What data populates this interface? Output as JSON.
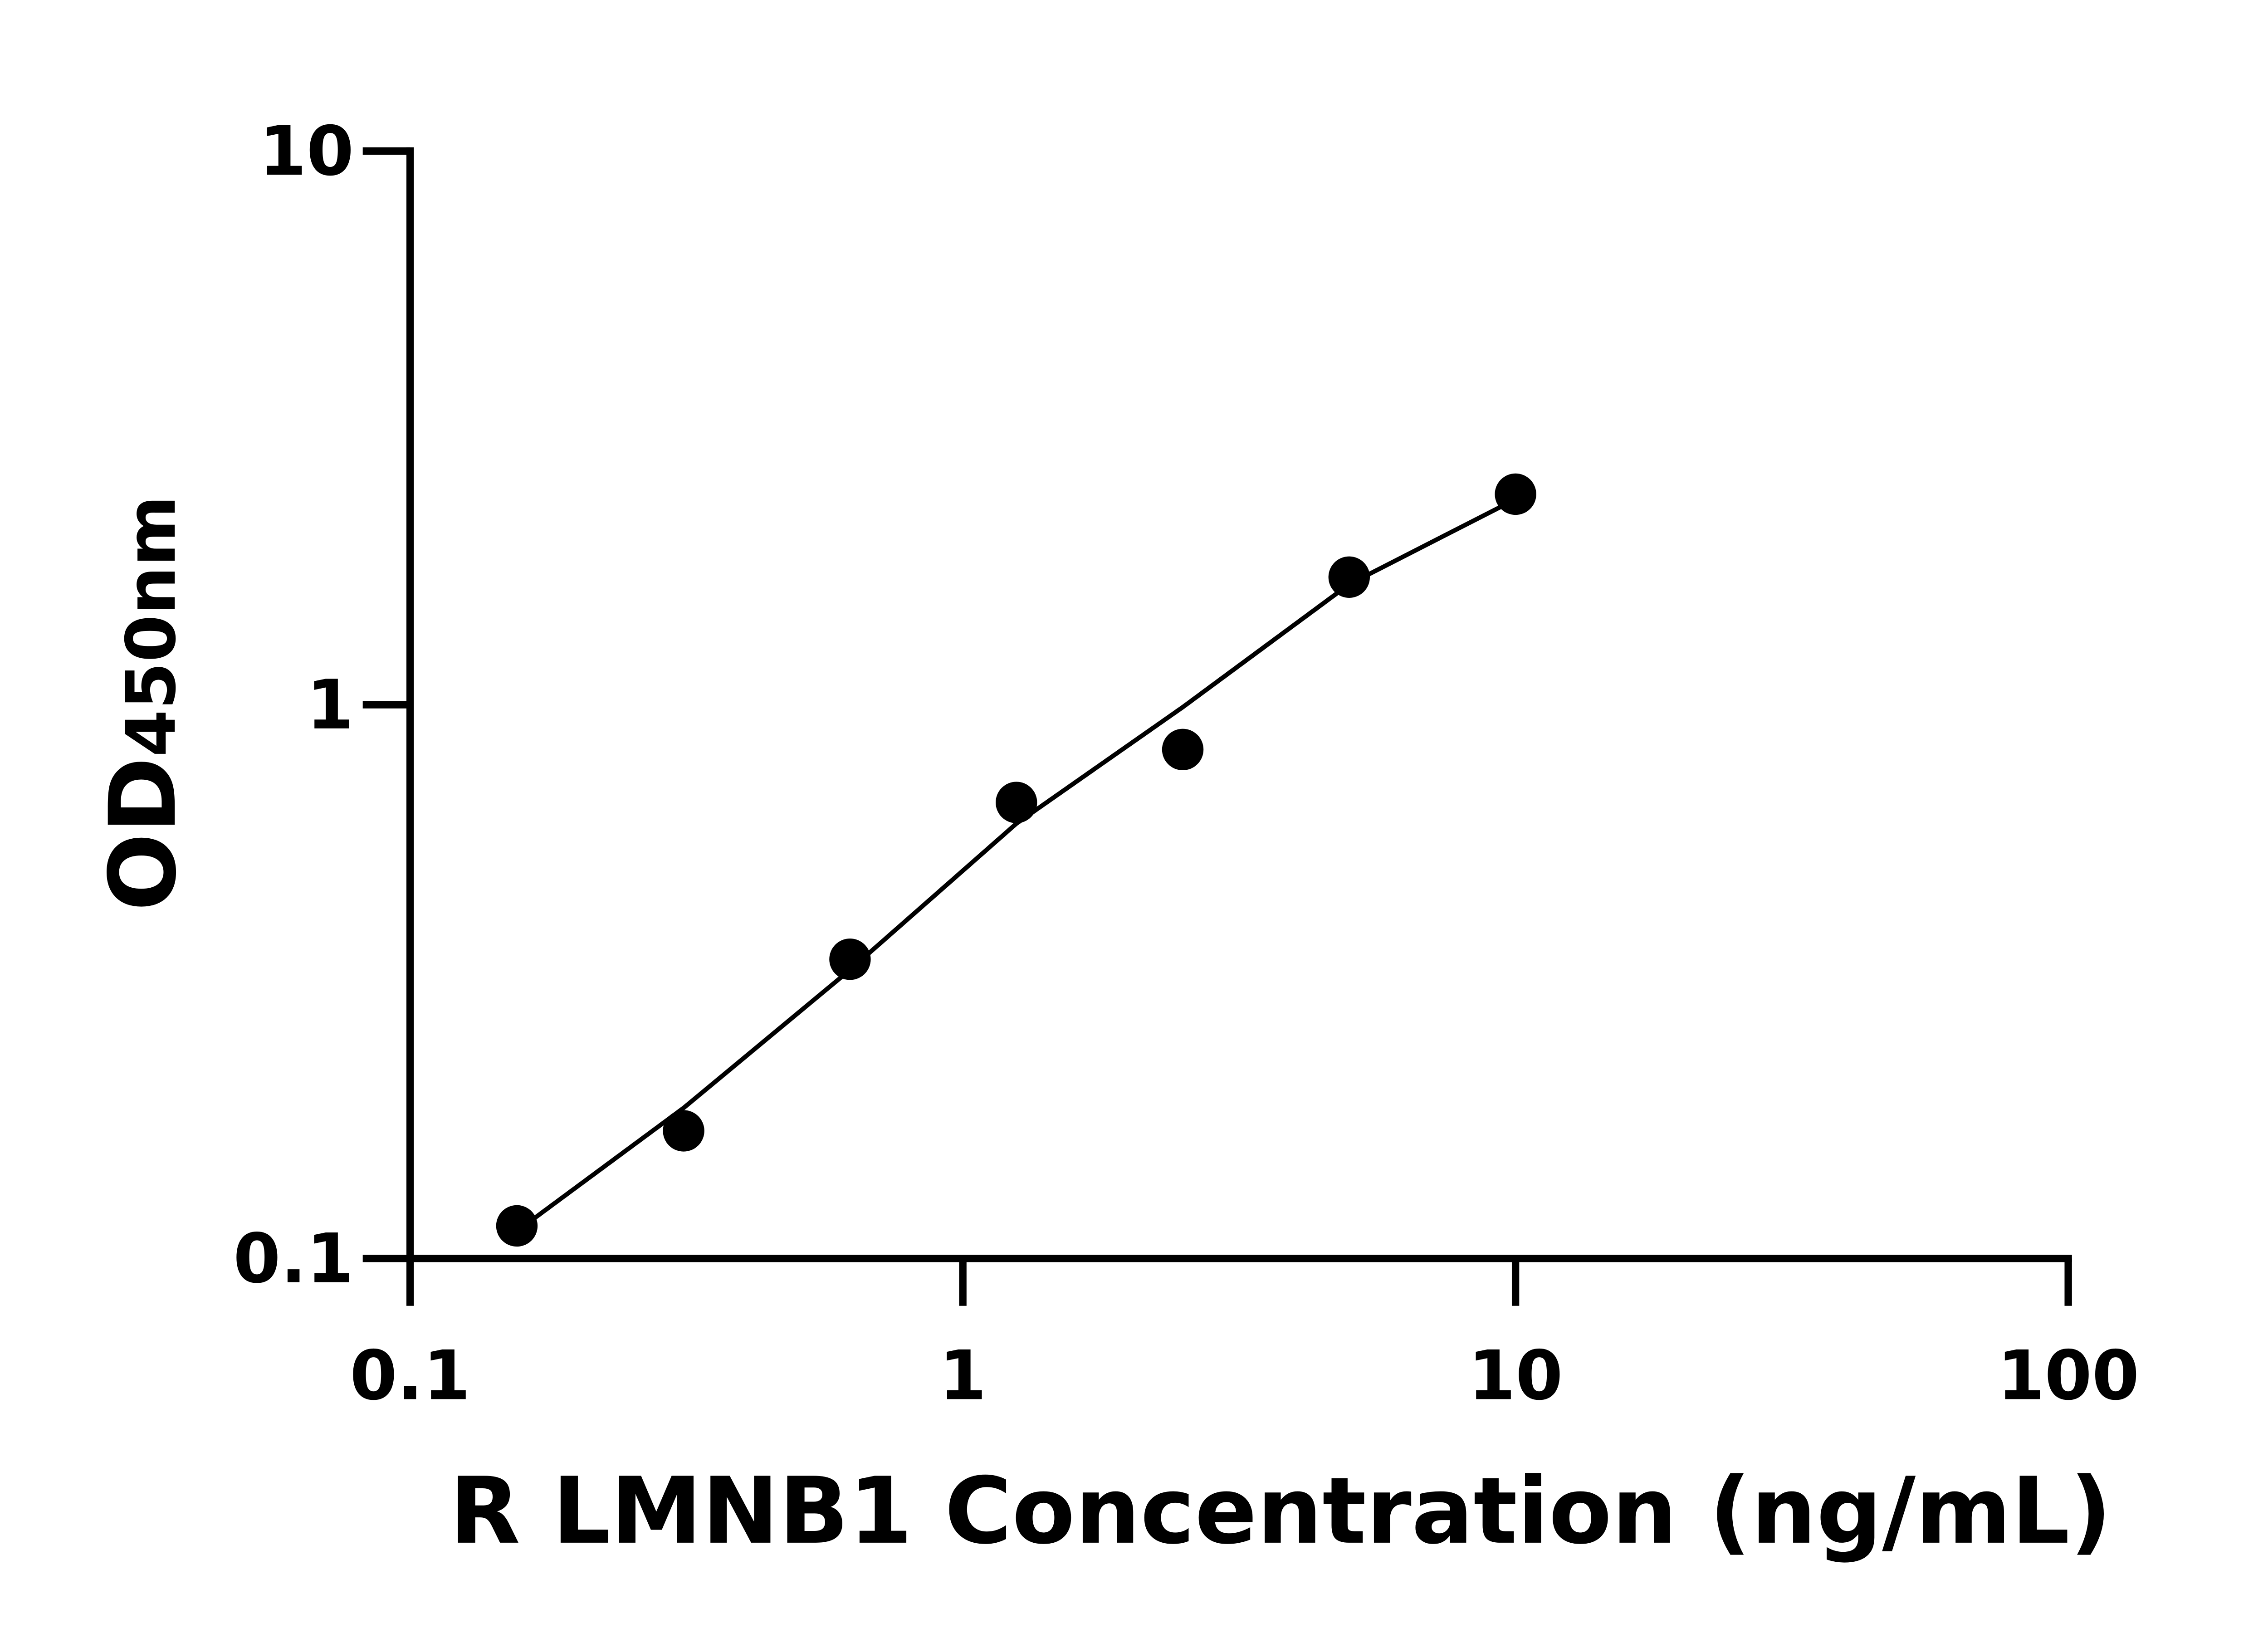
{
  "chart_data": {
    "type": "scatter",
    "x_label": "R LMNB1 Concentration (ng/mL)",
    "y_label": "OD",
    "y_label_sub": "450nm",
    "x_log": true,
    "y_log": true,
    "xlim": [
      0.1,
      100
    ],
    "xticks": [
      0.1,
      1,
      10,
      100
    ],
    "ylim": [
      0.1,
      10
    ],
    "yticks": [
      0.1,
      1,
      10
    ],
    "series": [
      {
        "color": "#000000",
        "x": [
          0.156,
          0.3125,
          0.625,
          1.25,
          2.5,
          5,
          10
        ],
        "values": [
          0.1145,
          0.17,
          0.347,
          0.666,
          0.83,
          1.7,
          2.4
        ]
      }
    ],
    "fit": {
      "color": "#000000",
      "x": [
        0.156,
        0.3125,
        0.625,
        1.25,
        2.5,
        5,
        10
      ],
      "values": [
        0.112,
        0.187,
        0.332,
        0.61,
        0.99,
        1.65,
        2.35
      ]
    }
  }
}
